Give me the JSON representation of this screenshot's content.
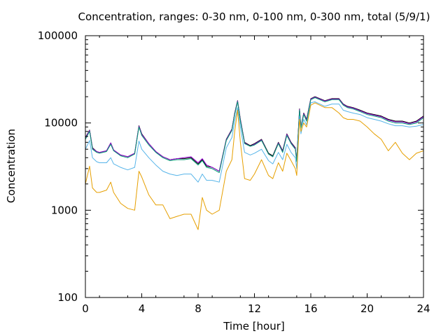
{
  "chart_data": {
    "type": "line",
    "title": "Concentration, ranges: 0-30 nm, 0-100 nm, 0-300 nm, total (5/9/1)",
    "xlabel": "Time [hour]",
    "ylabel": "Concentration",
    "xlim": [
      0,
      24
    ],
    "ylim": [
      100,
      100000
    ],
    "yscale": "log",
    "grid": false,
    "legend": "none",
    "x_ticks": [
      0,
      4,
      8,
      12,
      16,
      20,
      24
    ],
    "x_tick_labels": [
      "0",
      "4",
      "8",
      "12",
      "16",
      "20",
      "24"
    ],
    "y_ticks": [
      100,
      1000,
      10000,
      100000
    ],
    "y_tick_labels": [
      "100",
      "1000",
      "10000",
      "100000"
    ],
    "series": [
      {
        "color": "#000000",
        "x": [
          0,
          0.3,
          0.5,
          0.8,
          1.0,
          1.5,
          1.8,
          2.0,
          2.5,
          3.0,
          3.5,
          3.8,
          4.0,
          4.5,
          5.0,
          5.5,
          6.0,
          6.5,
          7.0,
          7.5,
          8.0,
          8.3,
          8.6,
          9.0,
          9.5,
          10.0,
          10.4,
          10.6,
          10.8,
          11.0,
          11.3,
          11.7,
          12.0,
          12.5,
          13.0,
          13.3,
          13.7,
          14.0,
          14.3,
          14.6,
          14.9,
          15.0,
          15.2,
          15.3,
          15.5,
          15.7,
          16.0,
          16.3,
          17.0,
          17.5,
          18.0,
          18.3,
          18.6,
          19.0,
          19.5,
          20.0,
          20.5,
          21.0,
          21.5,
          22.0,
          22.5,
          23.0,
          23.5,
          24.0
        ],
        "values": [
          6800,
          8300,
          5200,
          4700,
          4600,
          4800,
          5900,
          4900,
          4300,
          4100,
          4500,
          9300,
          7500,
          5800,
          4700,
          4100,
          3800,
          3900,
          3900,
          4000,
          3400,
          3800,
          3200,
          3100,
          2800,
          6500,
          8500,
          13000,
          18000,
          11000,
          6000,
          5500,
          5800,
          6500,
          4500,
          4200,
          6000,
          4800,
          7500,
          6000,
          5200,
          3800,
          14500,
          9000,
          13000,
          11000,
          19000,
          20000,
          18000,
          19000,
          19000,
          16500,
          15500,
          15000,
          14000,
          13000,
          12500,
          12000,
          11000,
          10500,
          10500,
          10000,
          10500,
          12000
        ]
      },
      {
        "color": "#9400d3",
        "x": [
          0,
          0.3,
          0.5,
          0.8,
          1.0,
          1.5,
          1.8,
          2.0,
          2.5,
          3.0,
          3.5,
          3.8,
          4.0,
          4.5,
          5.0,
          5.5,
          6.0,
          6.5,
          7.0,
          7.5,
          8.0,
          8.3,
          8.6,
          9.0,
          9.5,
          10.0,
          10.4,
          10.6,
          10.8,
          11.0,
          11.3,
          11.7,
          12.0,
          12.5,
          13.0,
          13.3,
          13.7,
          14.0,
          14.3,
          14.6,
          14.9,
          15.0,
          15.2,
          15.3,
          15.5,
          15.7,
          16.0,
          16.3,
          17.0,
          17.5,
          18.0,
          18.3,
          18.6,
          19.0,
          19.5,
          20.0,
          20.5,
          21.0,
          21.5,
          22.0,
          22.5,
          23.0,
          23.5,
          24.0
        ],
        "values": [
          6700,
          8200,
          5100,
          4700,
          4600,
          4800,
          5900,
          4900,
          4300,
          4100,
          4500,
          9200,
          7400,
          5800,
          4700,
          4100,
          3800,
          3900,
          4000,
          4100,
          3500,
          3900,
          3300,
          3100,
          2800,
          6400,
          8400,
          12800,
          17800,
          10800,
          5900,
          5400,
          5700,
          6400,
          4400,
          4100,
          5900,
          4700,
          7400,
          5900,
          5100,
          3700,
          14300,
          8900,
          12800,
          10800,
          18800,
          19800,
          17800,
          18800,
          18800,
          16300,
          15300,
          14800,
          13800,
          12800,
          12300,
          11800,
          10800,
          10300,
          10300,
          9800,
          10300,
          11800
        ]
      },
      {
        "color": "#009e73",
        "x": [
          0,
          0.3,
          0.5,
          0.8,
          1.0,
          1.5,
          1.8,
          2.0,
          2.5,
          3.0,
          3.5,
          3.8,
          4.0,
          4.5,
          5.0,
          5.5,
          6.0,
          6.5,
          7.0,
          7.5,
          8.0,
          8.3,
          8.6,
          9.0,
          9.5,
          10.0,
          10.4,
          10.6,
          10.8,
          11.0,
          11.3,
          11.7,
          12.0,
          12.5,
          13.0,
          13.3,
          13.7,
          14.0,
          14.3,
          14.6,
          14.9,
          15.0,
          15.2,
          15.3,
          15.5,
          15.7,
          16.0,
          16.3,
          17.0,
          17.5,
          18.0,
          18.3,
          18.6,
          19.0,
          19.5,
          20.0,
          20.5,
          21.0,
          21.5,
          22.0,
          22.5,
          23.0,
          23.5,
          24.0
        ],
        "values": [
          6500,
          8000,
          5000,
          4600,
          4500,
          4700,
          5700,
          4800,
          4200,
          4000,
          4400,
          9000,
          7200,
          5600,
          4600,
          4000,
          3700,
          3800,
          3800,
          3900,
          3300,
          3700,
          3100,
          3000,
          2700,
          6300,
          8200,
          12500,
          17500,
          10500,
          5800,
          5400,
          5600,
          6300,
          4400,
          4100,
          5800,
          4600,
          7200,
          5800,
          5000,
          3600,
          14000,
          8700,
          12500,
          10500,
          18500,
          19500,
          17500,
          18500,
          18500,
          16000,
          15000,
          14500,
          13500,
          12500,
          12000,
          11500,
          10500,
          10000,
          10000,
          9600,
          10000,
          11500
        ]
      },
      {
        "color": "#56b4e9",
        "x": [
          0,
          0.3,
          0.5,
          0.8,
          1.0,
          1.5,
          1.8,
          2.0,
          2.5,
          3.0,
          3.5,
          3.8,
          4.0,
          4.5,
          5.0,
          5.5,
          6.0,
          6.5,
          7.0,
          7.5,
          8.0,
          8.3,
          8.6,
          9.0,
          9.5,
          10.0,
          10.4,
          10.6,
          10.8,
          11.0,
          11.3,
          11.7,
          12.0,
          12.5,
          13.0,
          13.3,
          13.7,
          14.0,
          14.3,
          14.6,
          14.9,
          15.0,
          15.2,
          15.3,
          15.5,
          15.7,
          16.0,
          16.3,
          17.0,
          17.5,
          18.0,
          18.3,
          18.6,
          19.0,
          19.5,
          20.0,
          20.5,
          21.0,
          21.5,
          22.0,
          22.5,
          23.0,
          23.5,
          24.0
        ],
        "values": [
          5000,
          6300,
          4000,
          3600,
          3500,
          3500,
          4000,
          3400,
          3100,
          2900,
          3100,
          6200,
          5000,
          4000,
          3300,
          2800,
          2600,
          2500,
          2600,
          2600,
          2100,
          2600,
          2200,
          2200,
          2100,
          5200,
          6800,
          10500,
          15000,
          9000,
          4600,
          4300,
          4500,
          5000,
          3700,
          3400,
          4600,
          3800,
          5700,
          4600,
          4000,
          3000,
          12000,
          7500,
          11000,
          9500,
          17000,
          17500,
          15500,
          16500,
          16500,
          14000,
          13500,
          13000,
          12500,
          11500,
          11000,
          10500,
          9800,
          9300,
          9300,
          9000,
          9200,
          9600
        ]
      },
      {
        "color": "#e69f00",
        "x": [
          0,
          0.3,
          0.5,
          0.8,
          1.0,
          1.5,
          1.8,
          2.0,
          2.5,
          3.0,
          3.5,
          3.8,
          4.0,
          4.5,
          5.0,
          5.5,
          6.0,
          6.5,
          7.0,
          7.5,
          8.0,
          8.3,
          8.6,
          9.0,
          9.5,
          10.0,
          10.4,
          10.6,
          10.8,
          11.0,
          11.3,
          11.7,
          12.0,
          12.5,
          13.0,
          13.3,
          13.7,
          14.0,
          14.3,
          14.6,
          14.9,
          15.0,
          15.2,
          15.3,
          15.5,
          15.7,
          16.0,
          16.3,
          17.0,
          17.5,
          18.0,
          18.3,
          18.6,
          19.0,
          19.5,
          20.0,
          20.5,
          21.0,
          21.5,
          22.0,
          22.5,
          23.0,
          23.5,
          24.0
        ],
        "values": [
          2000,
          3200,
          1800,
          1600,
          1600,
          1700,
          2100,
          1600,
          1200,
          1050,
          1000,
          2800,
          2400,
          1500,
          1150,
          1150,
          800,
          850,
          900,
          900,
          600,
          1400,
          1000,
          900,
          1000,
          2800,
          3800,
          8000,
          14000,
          6000,
          2300,
          2200,
          2600,
          3800,
          2500,
          2300,
          3500,
          2800,
          4500,
          3700,
          3000,
          2500,
          11000,
          8000,
          10000,
          9000,
          16000,
          17000,
          15000,
          15000,
          13000,
          11500,
          11000,
          11000,
          10500,
          9000,
          7500,
          6500,
          4800,
          6000,
          4500,
          3800,
          4500,
          4800
        ]
      }
    ]
  }
}
